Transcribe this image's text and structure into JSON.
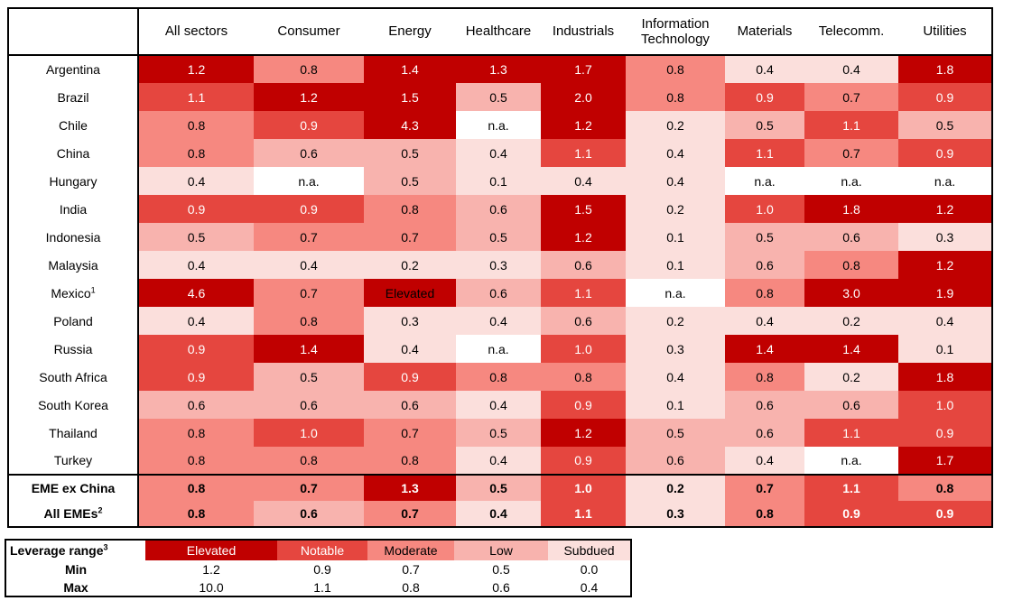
{
  "chart_data": {
    "type": "heatmap",
    "columns": [
      "All sectors",
      "Consumer",
      "Energy",
      "Healthcare",
      "Industrials",
      "Information Technology",
      "Materials",
      "Telecomm.",
      "Utilities"
    ],
    "na_text": "n.a.",
    "rows": [
      {
        "label": "Argentina",
        "footnote": "",
        "bold": false,
        "section_start": false,
        "values": [
          "1.2",
          "0.8",
          "1.4",
          "1.3",
          "1.7",
          "0.8",
          "0.4",
          "0.4",
          "1.8"
        ]
      },
      {
        "label": "Brazil",
        "footnote": "",
        "bold": false,
        "section_start": false,
        "values": [
          "1.1",
          "1.2",
          "1.5",
          "0.5",
          "2.0",
          "0.8",
          "0.9",
          "0.7",
          "0.9"
        ]
      },
      {
        "label": "Chile",
        "footnote": "",
        "bold": false,
        "section_start": false,
        "values": [
          "0.8",
          "0.9",
          "4.3",
          "n.a.",
          "1.2",
          "0.2",
          "0.5",
          "1.1",
          "0.5"
        ]
      },
      {
        "label": "China",
        "footnote": "",
        "bold": false,
        "section_start": false,
        "values": [
          "0.8",
          "0.6",
          "0.5",
          "0.4",
          "1.1",
          "0.4",
          "1.1",
          "0.7",
          "0.9"
        ]
      },
      {
        "label": "Hungary",
        "footnote": "",
        "bold": false,
        "section_start": false,
        "values": [
          "0.4",
          "n.a.",
          "0.5",
          "0.1",
          "0.4",
          "0.4",
          "n.a.",
          "n.a.",
          "n.a."
        ]
      },
      {
        "label": "India",
        "footnote": "",
        "bold": false,
        "section_start": false,
        "values": [
          "0.9",
          "0.9",
          "0.8",
          "0.6",
          "1.5",
          "0.2",
          "1.0",
          "1.8",
          "1.2"
        ]
      },
      {
        "label": "Indonesia",
        "footnote": "",
        "bold": false,
        "section_start": false,
        "values": [
          "0.5",
          "0.7",
          "0.7",
          "0.5",
          "1.2",
          "0.1",
          "0.5",
          "0.6",
          "0.3"
        ]
      },
      {
        "label": "Malaysia",
        "footnote": "",
        "bold": false,
        "section_start": false,
        "values": [
          "0.4",
          "0.4",
          "0.2",
          "0.3",
          "0.6",
          "0.1",
          "0.6",
          "0.8",
          "1.2"
        ]
      },
      {
        "label": "Mexico",
        "footnote": "1",
        "bold": false,
        "section_start": false,
        "values": [
          "4.6",
          "0.7",
          "Elevated",
          "0.6",
          "1.1",
          "n.a.",
          "0.8",
          "3.0",
          "1.9"
        ]
      },
      {
        "label": "Poland",
        "footnote": "",
        "bold": false,
        "section_start": false,
        "values": [
          "0.4",
          "0.8",
          "0.3",
          "0.4",
          "0.6",
          "0.2",
          "0.4",
          "0.2",
          "0.4"
        ]
      },
      {
        "label": "Russia",
        "footnote": "",
        "bold": false,
        "section_start": false,
        "values": [
          "0.9",
          "1.4",
          "0.4",
          "n.a.",
          "1.0",
          "0.3",
          "1.4",
          "1.4",
          "0.1"
        ]
      },
      {
        "label": "South Africa",
        "footnote": "",
        "bold": false,
        "section_start": false,
        "values": [
          "0.9",
          "0.5",
          "0.9",
          "0.8",
          "0.8",
          "0.4",
          "0.8",
          "0.2",
          "1.8"
        ]
      },
      {
        "label": "South Korea",
        "footnote": "",
        "bold": false,
        "section_start": false,
        "values": [
          "0.6",
          "0.6",
          "0.6",
          "0.4",
          "0.9",
          "0.1",
          "0.6",
          "0.6",
          "1.0"
        ]
      },
      {
        "label": "Thailand",
        "footnote": "",
        "bold": false,
        "section_start": false,
        "values": [
          "0.8",
          "1.0",
          "0.7",
          "0.5",
          "1.2",
          "0.5",
          "0.6",
          "1.1",
          "0.9"
        ]
      },
      {
        "label": "Turkey",
        "footnote": "",
        "bold": false,
        "section_start": false,
        "values": [
          "0.8",
          "0.8",
          "0.8",
          "0.4",
          "0.9",
          "0.6",
          "0.4",
          "n.a.",
          "1.7"
        ]
      },
      {
        "label": "EME ex China",
        "footnote": "",
        "bold": true,
        "section_start": true,
        "values": [
          "0.8",
          "0.7",
          "1.3",
          "0.5",
          "1.0",
          "0.2",
          "0.7",
          "1.1",
          "0.8"
        ]
      },
      {
        "label": "All EMEs",
        "footnote": "2",
        "bold": true,
        "section_start": false,
        "values": [
          "0.8",
          "0.6",
          "0.7",
          "0.4",
          "1.1",
          "0.3",
          "0.8",
          "0.9",
          "0.9"
        ]
      }
    ],
    "legend": {
      "title": "Leverage range",
      "title_footnote": "3",
      "min_label": "Min",
      "max_label": "Max",
      "bins": [
        {
          "label": "Elevated",
          "min": "1.2",
          "max": "10.0",
          "bg": "#C00000",
          "fg": "#FFFFFF"
        },
        {
          "label": "Notable",
          "min": "0.9",
          "max": "1.1",
          "bg": "#E5463F",
          "fg": "#FFFFFF"
        },
        {
          "label": "Moderate",
          "min": "0.7",
          "max": "0.8",
          "bg": "#F68880",
          "fg": "#000000"
        },
        {
          "label": "Low",
          "min": "0.5",
          "max": "0.6",
          "bg": "#F8B3AE",
          "fg": "#000000"
        },
        {
          "label": "Subdued",
          "min": "0.0",
          "max": "0.4",
          "bg": "#FBDFDC",
          "fg": "#000000"
        }
      ],
      "na_bg": "#FFFFFF",
      "na_fg": "#000000"
    }
  }
}
